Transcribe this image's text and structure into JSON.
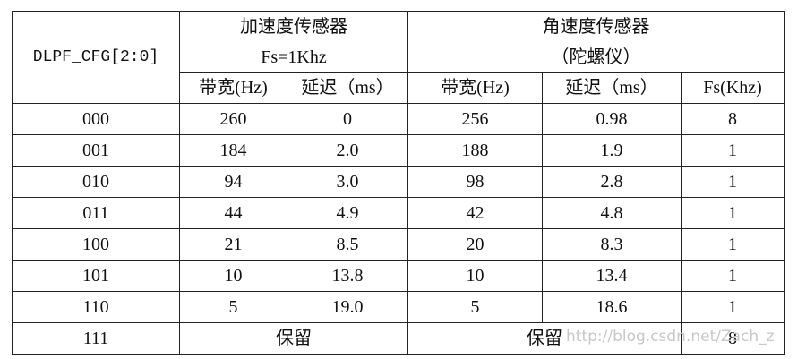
{
  "table": {
    "header": {
      "row_label": "DLPF_CFG[2:0]",
      "groups": [
        {
          "title": "加速度传感器",
          "subtitle": "Fs=1Khz"
        },
        {
          "title": "角速度传感器",
          "subtitle": "（陀螺仪）"
        }
      ],
      "columns": [
        "带宽(Hz)",
        "延迟（ms）",
        "带宽(Hz)",
        "延迟（ms）",
        "Fs(Khz)"
      ]
    },
    "rows": [
      [
        "000",
        "260",
        "0",
        "256",
        "0.98",
        "8"
      ],
      [
        "001",
        "184",
        "2.0",
        "188",
        "1.9",
        "1"
      ],
      [
        "010",
        "94",
        "3.0",
        "98",
        "2.8",
        "1"
      ],
      [
        "011",
        "44",
        "4.9",
        "42",
        "4.8",
        "1"
      ],
      [
        "100",
        "21",
        "8.5",
        "20",
        "8.3",
        "1"
      ],
      [
        "101",
        "10",
        "13.8",
        "10",
        "13.4",
        "1"
      ],
      [
        "110",
        "5",
        "19.0",
        "5",
        "18.6",
        "1"
      ]
    ],
    "last_row": [
      "111",
      "保留",
      "保留",
      "8"
    ],
    "watermark": "http://blog.csdn.net/Zach_z"
  }
}
